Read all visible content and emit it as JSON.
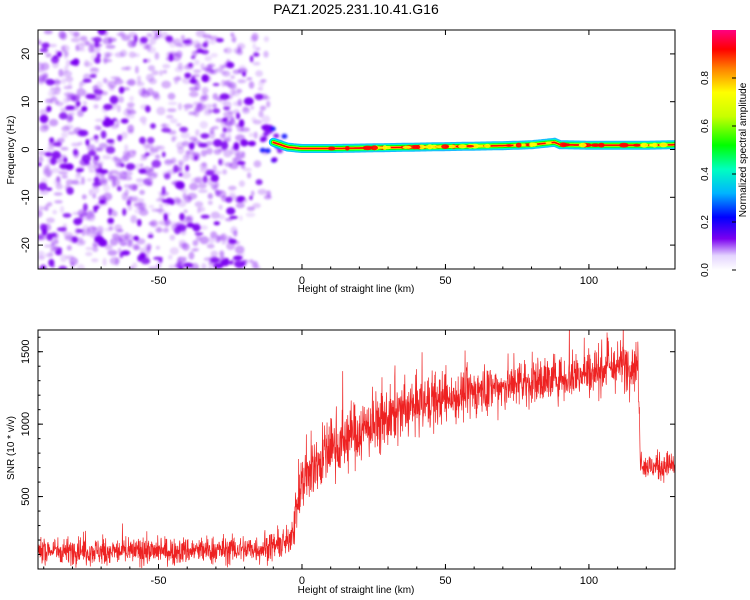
{
  "title": "PAZ1.2025.231.10.41.G16",
  "colors": {
    "snr_line": "#ee2222",
    "scatter": "#7b00f0",
    "colormap": [
      "#ffffff",
      "#e4d4ff",
      "#7b00f0",
      "#0000ff",
      "#00ccff",
      "#00ff40",
      "#ffff00",
      "#ff0000",
      "#ff0080"
    ]
  },
  "chart_data": [
    {
      "type": "heatmap",
      "name": "spectrogram",
      "xlabel": "Height of straight line (km)",
      "ylabel": "Frequency (Hz)",
      "xlim": [
        -92,
        130
      ],
      "ylim": [
        -25,
        25
      ],
      "x_ticks": [
        -50,
        0,
        50,
        100
      ],
      "y_ticks": [
        -20,
        -10,
        0,
        10,
        20
      ],
      "x_tick_labels": [
        "-50",
        "0",
        "50",
        "100"
      ],
      "y_tick_labels": [
        "-20",
        "-10",
        "0",
        "10",
        "20"
      ],
      "noise_region_x": [
        -92,
        -10
      ],
      "signal_track": {
        "x": [
          -10,
          -5,
          0,
          10,
          20,
          30,
          40,
          50,
          60,
          70,
          80,
          88,
          90,
          100,
          110,
          120,
          130
        ],
        "frequency": [
          1.5,
          0.5,
          0.2,
          0.2,
          0.3,
          0.4,
          0.5,
          0.6,
          0.7,
          0.8,
          1.0,
          1.5,
          1.0,
          0.9,
          0.9,
          0.9,
          1.0
        ]
      },
      "colorbar": {
        "label": "Normalized spectral amplitude",
        "range": [
          0,
          1
        ],
        "ticks": [
          0.0,
          0.2,
          0.4,
          0.6,
          0.8
        ],
        "tick_labels": [
          "0.0",
          "0.2",
          "0.4",
          "0.6",
          "0.8"
        ]
      }
    },
    {
      "type": "line",
      "name": "snr",
      "xlabel": "Height of straight line (km)",
      "ylabel": "SNR (10 * v/v)",
      "xlim": [
        -92,
        130
      ],
      "ylim": [
        0,
        1650
      ],
      "x_ticks": [
        -50,
        0,
        50,
        100
      ],
      "y_ticks": [
        500,
        1000,
        1500
      ],
      "x_tick_labels": [
        "-50",
        "0",
        "50",
        "100"
      ],
      "y_tick_labels": [
        "500",
        "1000",
        "1500"
      ],
      "trend": {
        "x": [
          -92,
          -60,
          -30,
          -15,
          -5,
          -3,
          0,
          5,
          10,
          20,
          30,
          40,
          50,
          60,
          70,
          80,
          90,
          100,
          110,
          117,
          118,
          120,
          125,
          130
        ],
        "y": [
          130,
          120,
          130,
          140,
          180,
          300,
          600,
          720,
          840,
          950,
          1040,
          1120,
          1180,
          1220,
          1260,
          1290,
          1320,
          1360,
          1400,
          1420,
          760,
          700,
          710,
          720
        ]
      },
      "noise_amplitude": {
        "x": [
          -92,
          -5,
          0,
          20,
          60,
          110,
          117,
          118,
          130
        ],
        "y": [
          80,
          90,
          200,
          200,
          150,
          150,
          160,
          90,
          90
        ]
      }
    }
  ]
}
